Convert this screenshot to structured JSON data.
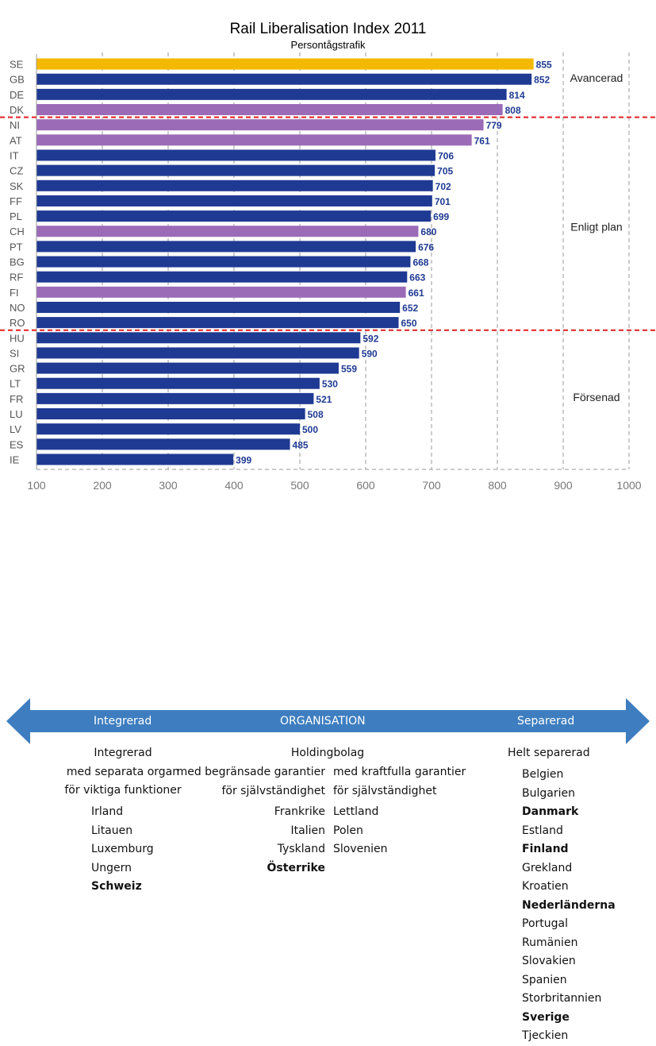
{
  "chart_data": {
    "type": "bar",
    "orientation": "horizontal",
    "title": "Rail Liberalisation Index 2011",
    "subtitle": "Persontågstrafik",
    "categories": [
      "SE",
      "GB",
      "DE",
      "DK",
      "NI",
      "AT",
      "IT",
      "CZ",
      "SK",
      "FF",
      "PL",
      "CH",
      "PT",
      "BG",
      "RF",
      "FI",
      "NO",
      "RO",
      "HU",
      "SI",
      "GR",
      "LT",
      "FR",
      "LU",
      "LV",
      "ES",
      "IE"
    ],
    "values": [
      855,
      852,
      814,
      808,
      779,
      761,
      706,
      705,
      702,
      701,
      699,
      680,
      676,
      668,
      663,
      661,
      652,
      650,
      592,
      590,
      559,
      530,
      521,
      508,
      500,
      485,
      399
    ],
    "bar_colors": [
      "#F5B800",
      "#1F3A93",
      "#1F3A93",
      "#9B6BB8",
      "#9B6BB8",
      "#9B6BB8",
      "#1F3A93",
      "#1F3A93",
      "#1F3A93",
      "#1F3A93",
      "#1F3A93",
      "#9B6BB8",
      "#1F3A93",
      "#1F3A93",
      "#1F3A93",
      "#9B6BB8",
      "#1F3A93",
      "#1F3A93",
      "#1F3A93",
      "#1F3A93",
      "#1F3A93",
      "#1F3A93",
      "#1F3A93",
      "#1F3A93",
      "#1F3A93",
      "#1F3A93",
      "#1F3A93"
    ],
    "xlim": [
      100,
      1000
    ],
    "x_ticks": [
      "100",
      "200",
      "300",
      "400",
      "500",
      "600",
      "700",
      "800",
      "900",
      "1000"
    ],
    "grid": "vertical dashed",
    "zones": [
      {
        "label": "Avancerad",
        "rows": [
          0,
          3
        ]
      },
      {
        "label": "Enligt plan",
        "rows": [
          4,
          17
        ]
      },
      {
        "label": "Försenad",
        "rows": [
          18,
          26
        ]
      }
    ],
    "separator_color": "#E02020",
    "value_label_color": "#1F3A93"
  },
  "organisation": {
    "arrow_color": "#3E7EC0",
    "left_label": "Integrerad",
    "center_label": "ORGANISATION",
    "right_label": "Separerad",
    "col1": {
      "heading": [
        "Integrerad",
        "med separata organ",
        "för viktiga funktioner"
      ],
      "countries": [
        {
          "name": "Irland",
          "bold": false
        },
        {
          "name": "Litauen",
          "bold": false
        },
        {
          "name": "Luxemburg",
          "bold": false
        },
        {
          "name": "Ungern",
          "bold": false
        },
        {
          "name": "Schweiz",
          "bold": true
        }
      ]
    },
    "holding_heading": "Holdingbolag",
    "col2": {
      "heading": [
        "med begränsade garantier",
        "för självständighet"
      ],
      "countries": [
        {
          "name": "Frankrike",
          "bold": false
        },
        {
          "name": "Italien",
          "bold": false
        },
        {
          "name": "Tyskland",
          "bold": false
        },
        {
          "name": "Österrike",
          "bold": true
        }
      ]
    },
    "col3": {
      "heading": [
        "med kraftfulla garantier",
        "för självständighet"
      ],
      "countries": [
        {
          "name": "Lettland",
          "bold": false
        },
        {
          "name": "Polen",
          "bold": false
        },
        {
          "name": "Slovenien",
          "bold": false
        }
      ]
    },
    "col4": {
      "heading": [
        "Helt separerad"
      ],
      "countries": [
        {
          "name": "Belgien",
          "bold": false
        },
        {
          "name": "Bulgarien",
          "bold": false
        },
        {
          "name": "Danmark",
          "bold": true
        },
        {
          "name": "Estland",
          "bold": false
        },
        {
          "name": "Finland",
          "bold": true
        },
        {
          "name": "Grekland",
          "bold": false
        },
        {
          "name": "Kroatien",
          "bold": false
        },
        {
          "name": "Nederländerna",
          "bold": true
        },
        {
          "name": "Portugal",
          "bold": false
        },
        {
          "name": "Rumänien",
          "bold": false
        },
        {
          "name": "Slovakien",
          "bold": false
        },
        {
          "name": "Spanien",
          "bold": false
        },
        {
          "name": "Storbritannien",
          "bold": false
        },
        {
          "name": "Sverige",
          "bold": true
        },
        {
          "name": "Tjeckien",
          "bold": false
        }
      ]
    }
  }
}
